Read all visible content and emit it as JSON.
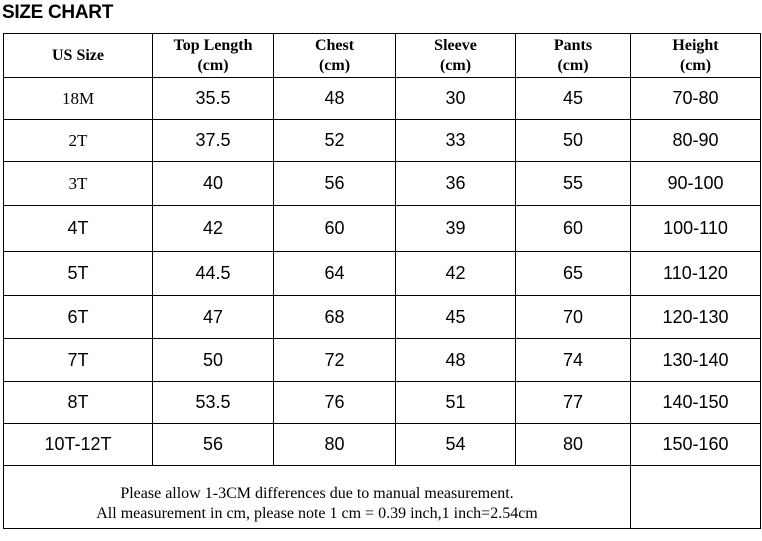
{
  "title": "SIZE CHART",
  "table": {
    "header": [
      "US Size",
      "Top Length\n(cm)",
      "Chest\n(cm)",
      "Sleeve\n(cm)",
      "Pants\n(cm)",
      "Height\n(cm)"
    ],
    "rows": [
      [
        "18M",
        35.5,
        48,
        30,
        45,
        "70-80"
      ],
      [
        "2T",
        37.5,
        52,
        33,
        50,
        "80-90"
      ],
      [
        "3T",
        40,
        56,
        36,
        55,
        "90-100"
      ],
      [
        "4T",
        42,
        60,
        39,
        60,
        "100-110"
      ],
      [
        "5T",
        44.5,
        64,
        42,
        65,
        "110-120"
      ],
      [
        "6T",
        47,
        68,
        45,
        70,
        "120-130"
      ],
      [
        "7T",
        50,
        72,
        48,
        74,
        "130-140"
      ],
      [
        "8T",
        53.5,
        76,
        51,
        77,
        "140-150"
      ],
      [
        "10T-12T",
        56,
        80,
        54,
        80,
        "150-160"
      ]
    ],
    "footer": [
      "Please allow 1-3CM differences due to manual measurement.",
      "All measurement in cm, please note 1 cm = 0.39 inch,1 inch=2.54cm"
    ]
  }
}
